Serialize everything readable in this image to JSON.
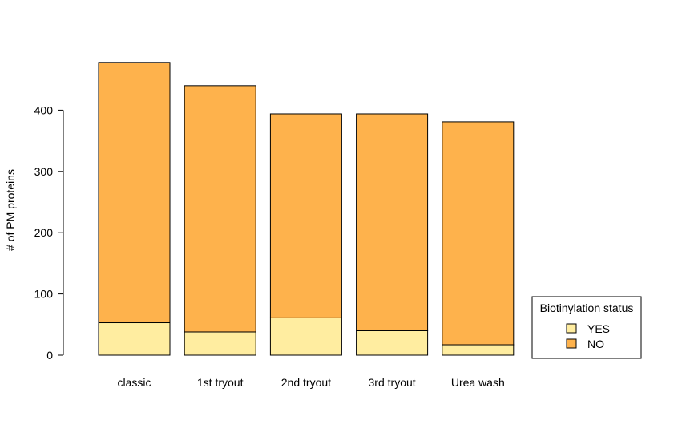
{
  "chart_data": {
    "type": "bar",
    "stacked": true,
    "title": "",
    "xlabel": "",
    "ylabel": "# of PM proteins",
    "categories": [
      "classic",
      "1st tryout",
      "2nd tryout",
      "3rd tryout",
      "Urea wash"
    ],
    "series": [
      {
        "name": "YES",
        "color": "#FFEDA0",
        "values": [
          53,
          38,
          61,
          40,
          17
        ]
      },
      {
        "name": "NO",
        "color": "#FEB24C",
        "values": [
          425,
          402,
          333,
          354,
          364
        ]
      }
    ],
    "ylim": [
      0,
      480
    ],
    "yticks": [
      0,
      100,
      200,
      300,
      400
    ],
    "grid": false,
    "legend": {
      "title": "Biotinylation status",
      "placement": "bottom-right",
      "entries": [
        "YES",
        "NO"
      ]
    }
  }
}
